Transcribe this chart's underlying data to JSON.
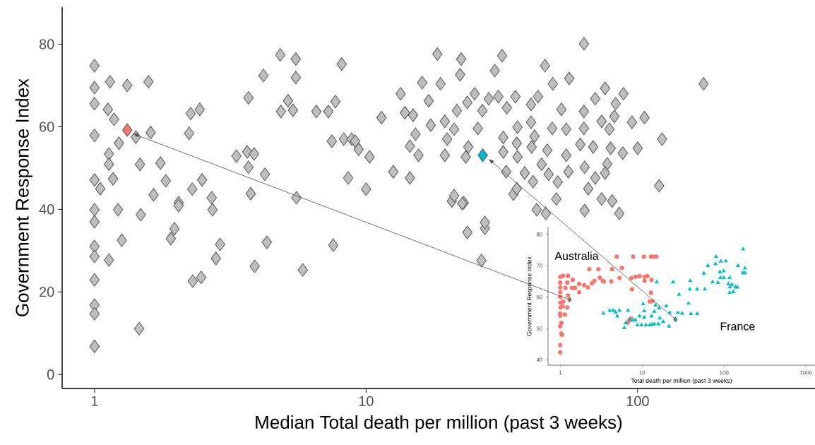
{
  "chart_data": [
    {
      "type": "scatter",
      "xlabel": "Median Total death per million (past 3 weeks)",
      "ylabel": "Government Response Index",
      "log": "x",
      "marker": "diamond",
      "xlim": [
        0.76,
        450
      ],
      "ylim": [
        -3.4,
        89
      ],
      "xticks": [
        1,
        10,
        100
      ],
      "yticks": [
        0,
        20,
        40,
        60,
        80
      ],
      "series": [
        {
          "color": "#bebebe",
          "x": [
            1.0,
            1.14,
            1.32,
            1.58,
            1.0,
            1.0,
            1.12,
            1.18,
            1.0,
            1.42,
            1.61,
            1.23,
            1.13,
            1.13,
            1.47,
            1.75,
            1.17,
            1.0,
            1.05,
            1.83,
            1.65,
            2.04,
            2.29,
            2.49,
            2.7,
            2.26,
            2.44,
            2.23,
            3.69,
            4.19,
            4.83,
            5.51,
            5.51,
            5.16,
            5.38,
            4.86,
            6.56,
            7.26,
            7.71,
            8.13,
            3.33,
            3.65,
            3.87,
            3.69,
            4.24,
            3.76,
            5.54,
            7.48,
            8.28,
            8.85,
            9.39,
            10.3,
            8.59,
            10.0,
            1.0,
            1.22,
            1.48,
            1.0,
            1.26,
            1.0,
            1.0,
            1.13,
            1.0,
            1.0,
            1.0,
            1.46,
            1.0,
            1.97,
            1.91,
            2.9,
            2.8,
            3.89,
            4.31,
            5.85,
            7.57,
            2.3,
            2.47,
            2.04,
            2.72,
            23.6,
            27.4,
            26.6,
            22.9,
            20.7,
            18.3,
            22.4,
            31.7,
            63.4,
            175,
            22.2,
            29.8,
            45.6,
            48.7,
            56.0,
            16.1,
            18.8,
            13.4,
            17.0,
            11.4,
            13.9,
            14.9,
            17.3,
            19.5,
            21.1,
            21.6,
            23.6,
            25.1,
            26.8,
            28.3,
            30.7,
            33.0,
            35.5,
            40.5,
            43.0,
            15.2,
            19.9,
            25.8,
            36.1,
            40.5,
            14.5,
            15.6,
            19.5,
            23.3,
            23.8,
            32.0,
            35.9,
            41.7,
            48.5,
            52.4,
            54.6,
            63.4,
            69.8,
            75.9,
            88.7,
            83.0,
            82.1,
            73.7,
            63.4,
            78.7,
            95.3,
            106,
            123,
            100,
            88.2,
            79.6,
            68.6,
            61.5,
            54.6,
            46.5,
            40.7,
            32.0,
            36.1,
            32.8,
            38.4,
            44.3,
            47.0,
            55.6,
            63.8,
            69.8,
            77.3,
            75.9,
            50.8,
            41.2,
            65.8,
            50.2,
            73.7,
            80.6,
            63.8,
            85.6,
            120,
            42.5,
            45.9,
            34.9,
            35.9,
            12.6,
            14.5,
            9.12,
            21.1,
            22.6,
            27.4
          ],
          "values": [
            74.8,
            70.9,
            70.0,
            70.9,
            69.5,
            65.6,
            64.2,
            61.8,
            57.9,
            57.5,
            58.6,
            56.0,
            53.4,
            50.9,
            50.9,
            51.2,
            47.4,
            47.1,
            45.0,
            46.9,
            43.5,
            41.6,
            44.9,
            47.1,
            42.8,
            63.2,
            64.2,
            58.4,
            67.0,
            72.4,
            77.4,
            76.4,
            71.9,
            66.3,
            64.0,
            63.7,
            63.7,
            63.7,
            66.1,
            75.2,
            52.9,
            53.9,
            53.4,
            50.2,
            48.5,
            43.8,
            42.8,
            56.5,
            57.0,
            57.0,
            54.5,
            52.7,
            47.6,
            44.9,
            39.9,
            39.9,
            38.7,
            37.0,
            32.5,
            31.0,
            28.6,
            27.7,
            22.9,
            16.8,
            14.7,
            11.1,
            6.8,
            35.3,
            32.9,
            31.5,
            28.1,
            26.2,
            32.0,
            25.3,
            31.3,
            22.6,
            23.5,
            40.9,
            39.9,
            34.4,
            35.4,
            27.6,
            41.6,
            42.0,
            77.6,
            76.4,
            77.2,
            80.1,
            70.4,
            72.6,
            73.6,
            74.8,
            70.4,
            71.7,
            70.7,
            70.4,
            68.0,
            66.3,
            62.2,
            63.4,
            62.8,
            60.4,
            61.3,
            59.4,
            63.9,
            65.9,
            68.0,
            63.9,
            66.8,
            67.3,
            64.6,
            67.3,
            65.4,
            67.3,
            58.2,
            57.0,
            59.6,
            59.9,
            61.1,
            55.3,
            53.1,
            53.1,
            52.7,
            55.1,
            57.4,
            56.0,
            57.7,
            59.6,
            64.2,
            59.4,
            63.7,
            66.8,
            69.3,
            68.0,
            65.6,
            62.5,
            61.3,
            59.6,
            59.4,
            61.1,
            62.2,
            57.0,
            54.8,
            53.6,
            54.8,
            55.1,
            55.7,
            53.1,
            54.3,
            55.1,
            53.9,
            52.7,
            49.1,
            48.8,
            50.9,
            48.5,
            49.1,
            50.2,
            47.6,
            51.0,
            48.8,
            46.6,
            46.7,
            45.0,
            42.5,
            42.5,
            42.0,
            39.7,
            39.0,
            45.7,
            39.9,
            39.0,
            43.7,
            45.0,
            49.1,
            47.6,
            56.5,
            43.3,
            41.4,
            36.8
          ]
        },
        {
          "color": "#f8766d",
          "x": [
            1.32
          ],
          "values": [
            59.2
          ]
        },
        {
          "color": "#00b8d4",
          "x": [
            26.9
          ],
          "values": [
            53.1
          ]
        }
      ]
    },
    {
      "type": "scatter",
      "xlabel": "Total death per million (past 3 weeks)",
      "ylabel": "Government Response Index",
      "log": "x",
      "xlim": [
        0.71,
        1290
      ],
      "ylim": [
        38.3,
        82.2
      ],
      "xticks": [
        1,
        10,
        100,
        1000
      ],
      "yticks": [
        40,
        50,
        60,
        70,
        80
      ],
      "series": [
        {
          "name": "Australia",
          "color": "#f8766d",
          "marker": "circle",
          "x": [
            1.0,
            1.0,
            1.03,
            1.0,
            1.03,
            1.0,
            1.0,
            1.01,
            1.0,
            1.0,
            1.0,
            1.0,
            1.0,
            1.0,
            1.08,
            1.05,
            1.14,
            1.16,
            1.22,
            1.22,
            1.24,
            1.42,
            1.39,
            1.51,
            1.7,
            1.7,
            1.96,
            2.18,
            2.26,
            2.44,
            2.61,
            2.92,
            3.04,
            3.29,
            3.4,
            4.2,
            4.29,
            4.89,
            5.29,
            5.65,
            7.37,
            7.78,
            7.53,
            8.31,
            9.3,
            10.5,
            10.7,
            10.7,
            11.6,
            12.8,
            13.6,
            14.9,
            13.0,
            12.8,
            12.4,
            13.4,
            7.3,
            6.6,
            7.0,
            1.24,
            1.07,
            1.09
          ],
          "values": [
            42.4,
            44.7,
            48.4,
            50.7,
            51.8,
            54.1,
            54.8,
            56.7,
            58.2,
            60.1,
            61.6,
            63.1,
            64.6,
            66.5,
            66.8,
            48.0,
            54.4,
            62.9,
            56.7,
            64.6,
            66.8,
            65.5,
            62.9,
            62.9,
            61.6,
            64.2,
            63.8,
            63.1,
            68.9,
            64.4,
            65.2,
            68.9,
            66.2,
            65.2,
            65.0,
            65.0,
            68.9,
            72.9,
            66.1,
            69.3,
            66.1,
            72.9,
            62.5,
            66.5,
            66.7,
            72.9,
            66.5,
            65.2,
            66.7,
            72.9,
            72.9,
            72.9,
            65.5,
            61.4,
            58.6,
            58.7,
            53.2,
            51.8,
            52.6,
            60.5,
            57.1,
            58.6
          ]
        },
        {
          "name": "France",
          "color": "#00bfc4",
          "marker": "triangle",
          "x": [
            3.36,
            4.01,
            4.43,
            4.73,
            4.96,
            5.29,
            6.29,
            6.71,
            6.05,
            7.04,
            7.78,
            8.31,
            8.77,
            9.3,
            9.8,
            10.3,
            10.6,
            10.6,
            11.1,
            12.4,
            13.2,
            14.1,
            15.8,
            13.0,
            14.1,
            14.6,
            15.1,
            16.1,
            16.4,
            18.1,
            19.7,
            21.3,
            21.7,
            23.9,
            27.3,
            28.2,
            30.8,
            36.8,
            38.2,
            38.6,
            39.3,
            47.0,
            47.0,
            58.4,
            56.6,
            63.6,
            72.5,
            78.7,
            79.8,
            88.9,
            90.1,
            91.3,
            99.2,
            105,
            113,
            117,
            118,
            125,
            130,
            138,
            145,
            148,
            171,
            180,
            180,
            169,
            117,
            84.3,
            99.2
          ],
          "values": [
            54.8,
            55.7,
            55.7,
            55.2,
            53.9,
            55.7,
            51.8,
            55.7,
            50.2,
            52.9,
            52.6,
            52.7,
            51.1,
            53.9,
            51.1,
            57.8,
            55.6,
            53.5,
            51.1,
            51.1,
            51.2,
            51.4,
            51.4,
            53.9,
            55.4,
            57.4,
            64.8,
            56.5,
            53.3,
            52.2,
            57.2,
            50.7,
            55.0,
            64.8,
            55.0,
            60.8,
            54.8,
            58.0,
            62.5,
            65.2,
            54.7,
            62.5,
            54.7,
            62.5,
            67.6,
            70.0,
            64.8,
            70.6,
            72.9,
            68.0,
            66.2,
            71.4,
            66.2,
            71.5,
            64.2,
            66.2,
            63.2,
            64.0,
            61.7,
            63.2,
            63.1,
            70.0,
            75.3,
            69.2,
            67.7,
            67.7,
            61.4,
            64.6,
            68.3
          ]
        },
        {
          "color": "#f8766d",
          "marker": "diamond",
          "x": [
            1.3
          ],
          "values": [
            59.2
          ]
        },
        {
          "color": "#00bfc4",
          "marker": "diamond",
          "x": [
            25.5
          ],
          "values": [
            52.9
          ]
        }
      ]
    }
  ]
}
